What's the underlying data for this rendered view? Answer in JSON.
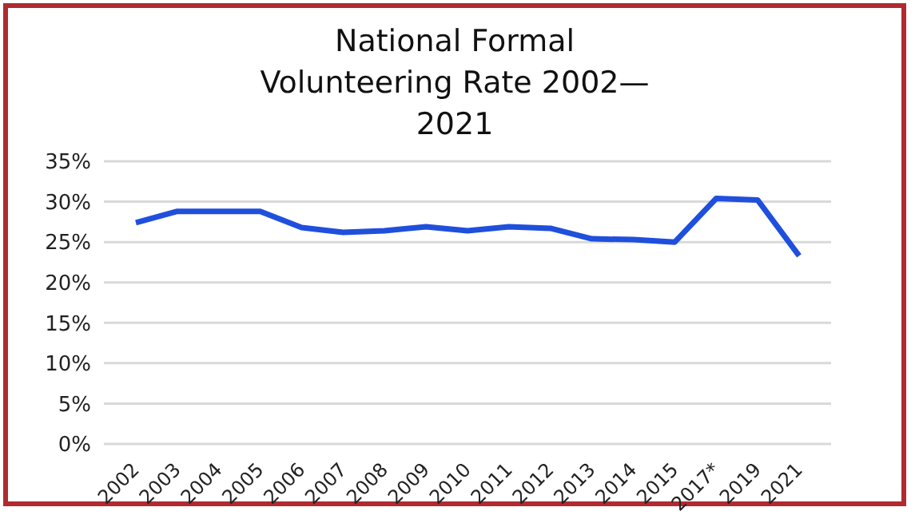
{
  "chart_data": {
    "type": "line",
    "title": "National Formal Volunteering Rate 2002—2021",
    "categories": [
      "2002",
      "2003",
      "2004",
      "2005",
      "2006",
      "2007",
      "2008",
      "2009",
      "2010",
      "2011",
      "2012",
      "2013",
      "2014",
      "2015",
      "2017*",
      "2019",
      "2021"
    ],
    "series": [
      {
        "color": "#1f4fdc",
        "values": [
          27.4,
          28.8,
          28.8,
          28.8,
          26.8,
          26.2,
          26.4,
          26.9,
          26.4,
          26.9,
          26.7,
          25.4,
          25.3,
          25.0,
          30.4,
          30.2,
          23.3
        ]
      }
    ],
    "ylim": [
      0,
      35
    ],
    "yticks": [
      {
        "value": 0,
        "label": "0%"
      },
      {
        "value": 5,
        "label": "5%"
      },
      {
        "value": 10,
        "label": "10%"
      },
      {
        "value": 15,
        "label": "15%"
      },
      {
        "value": 20,
        "label": "20%"
      },
      {
        "value": 25,
        "label": "25%"
      },
      {
        "value": 30,
        "label": "30%"
      },
      {
        "value": 35,
        "label": "35%"
      }
    ],
    "grid": "y",
    "legend": false,
    "marker": "none",
    "line_style": "solid"
  }
}
